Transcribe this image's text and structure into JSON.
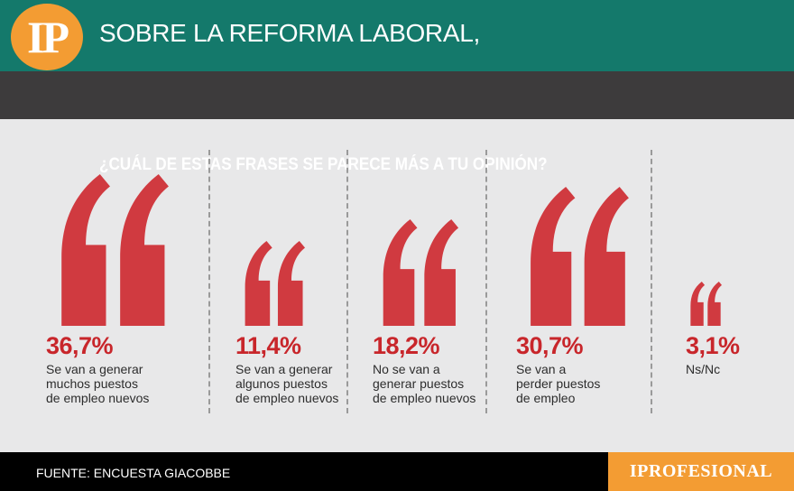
{
  "header": {
    "logo_text": "IP",
    "title": "SOBRE LA REFORMA LABORAL,",
    "subtitle": "¿CUÁL DE ESTAS FRASES SE PARECE MÁS A TU OPINIÓN?"
  },
  "chart_data": {
    "type": "bar",
    "title": "SOBRE LA REFORMA LABORAL, ¿CUÁL DE ESTAS FRASES SE PARECE MÁS A TU OPINIÓN?",
    "unit": "%",
    "categories": [
      "Se van a generar muchos puestos de empleo nuevos",
      "Se van a generar algunos puestos de empleo nuevos",
      "No se van a generar puestos de empleo nuevos",
      "Se van a perder puestos de empleo",
      "Ns/Nc"
    ],
    "values": [
      36.7,
      11.4,
      18.2,
      30.7,
      3.1
    ],
    "items": [
      {
        "value": 36.7,
        "value_label": "36,7%",
        "label_lines": [
          "Se van a generar",
          "muchos puestos",
          "de empleo nuevos"
        ]
      },
      {
        "value": 11.4,
        "value_label": "11,4%",
        "label_lines": [
          "Se van a generar",
          "algunos puestos",
          "de empleo nuevos"
        ]
      },
      {
        "value": 18.2,
        "value_label": "18,2%",
        "label_lines": [
          "No se van a",
          "generar puestos",
          "de empleo nuevos"
        ]
      },
      {
        "value": 30.7,
        "value_label": "30,7%",
        "label_lines": [
          "Se van a",
          "perder puestos",
          "de empleo"
        ]
      },
      {
        "value": 3.1,
        "value_label": "3,1%",
        "label_lines": [
          "Ns/Nc"
        ]
      }
    ],
    "mark_color": "#d03a40"
  },
  "footer": {
    "source": "FUENTE: ENCUESTA GIACOBBE",
    "brand": "IPROFESIONAL"
  }
}
